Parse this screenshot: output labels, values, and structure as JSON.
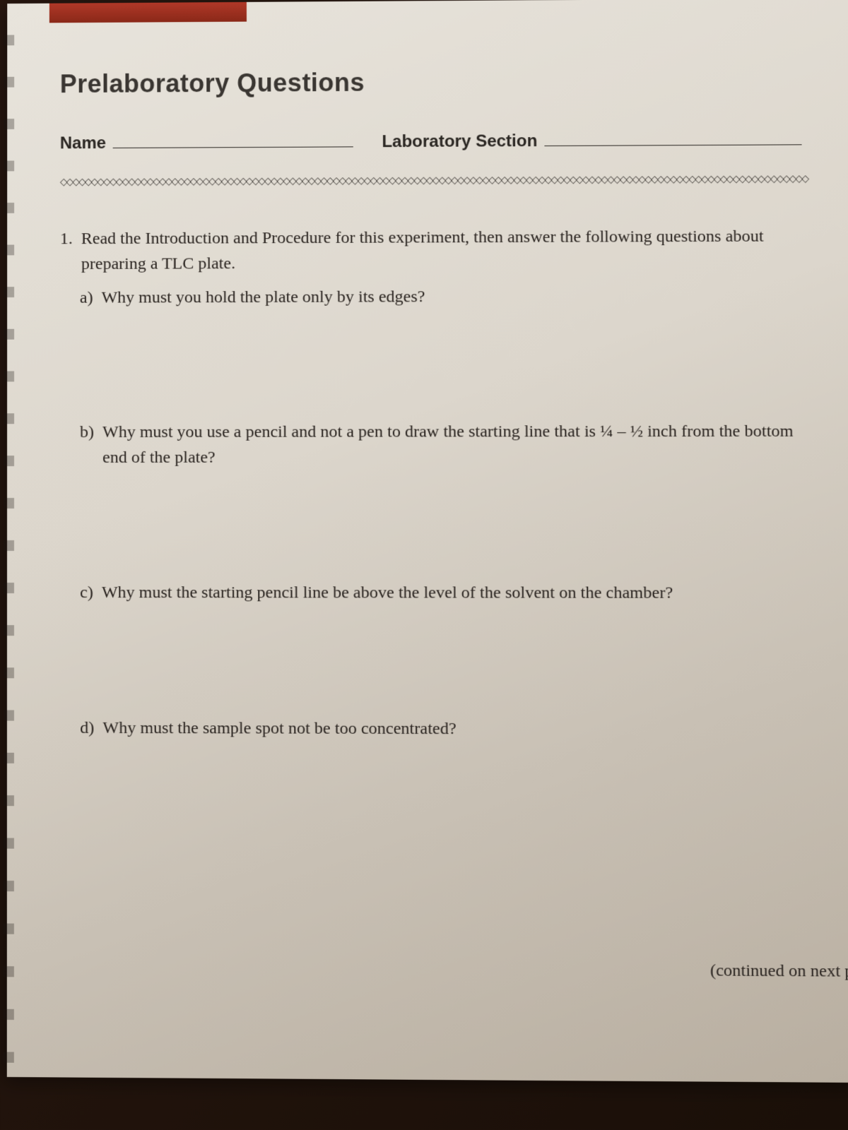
{
  "page": {
    "title": "Prelaboratory Questions",
    "name_label": "Name",
    "section_label": "Laboratory Section",
    "continued_text": "(continued on next pa",
    "colors": {
      "red_tab": "#a03020",
      "page_bg_light": "#e8e4dc",
      "page_bg_dark": "#b8aea0",
      "text_dark": "#2a2622",
      "title_color": "#3a3632"
    },
    "typography": {
      "title_fontsize": 36,
      "label_fontsize": 24,
      "body_fontsize": 24,
      "title_font": "Arial",
      "body_font": "Georgia"
    }
  },
  "question1": {
    "number": "1.",
    "main_text": "Read the Introduction and Procedure for this experiment, then answer the following questions about preparing a TLC plate.",
    "parts": {
      "a": {
        "letter": "a)",
        "text": "Why must you hold the plate only by its edges?"
      },
      "b": {
        "letter": "b)",
        "text": "Why must you use a pencil and not a pen to draw the starting line that is ¼ – ½ inch from the bottom end of the plate?"
      },
      "c": {
        "letter": "c)",
        "text": "Why must the starting pencil line be above the level of the solvent on the chamber?"
      },
      "d": {
        "letter": "d)",
        "text": "Why must the sample spot not be too concentrated?"
      }
    }
  },
  "divider": {
    "pattern": "◇◇◇◇◇◇◇◇◇◇◇◇◇◇◇◇◇◇◇◇◇◇◇◇◇◇◇◇◇◇◇◇◇◇◇◇◇◇◇◇◇◇◇◇◇◇◇◇◇◇◇◇◇◇◇◇◇◇◇◇◇◇◇◇◇◇◇◇◇◇◇◇◇◇◇◇◇◇◇◇◇◇◇◇◇◇◇◇◇◇◇◇◇◇◇◇◇◇◇◇◇◇◇◇◇◇◇◇◇◇◇◇◇◇◇◇◇◇◇◇"
  }
}
